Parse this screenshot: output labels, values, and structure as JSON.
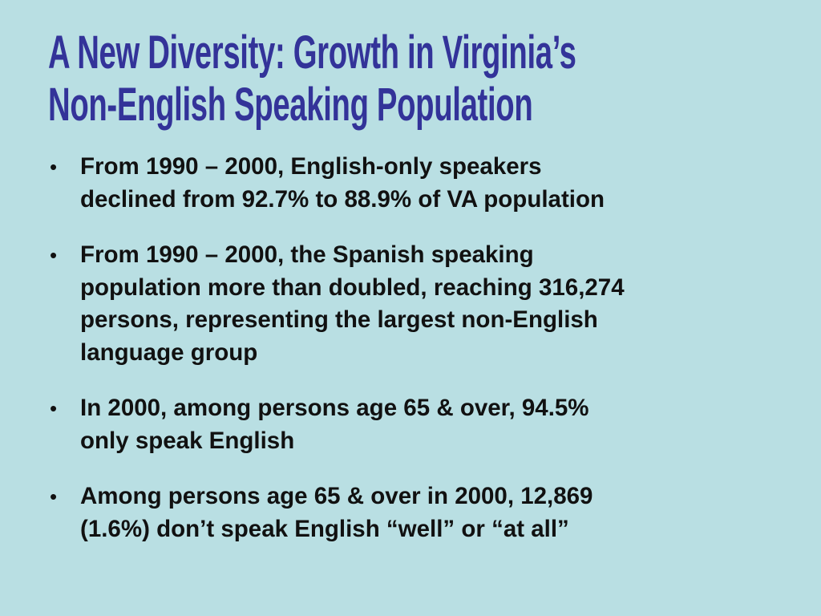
{
  "header": {
    "title_lines": [
      "A New Diversity: Growth in Virginia’s",
      "Non-English Speaking Population"
    ]
  },
  "bullets": [
    {
      "lines": [
        "From 1990 – 2000, English-only speakers",
        "declined from 92.7% to 88.9% of VA population"
      ]
    },
    {
      "lines": [
        "From 1990 – 2000, the Spanish speaking",
        "population more than doubled, reaching 316,274",
        "persons, representing the largest non-English",
        "language group"
      ]
    },
    {
      "lines": [
        "In 2000, among persons age 65 & over, 94.5%",
        "only speak English"
      ]
    },
    {
      "lines": [
        "Among persons age 65 & over in 2000, 12,869",
        "(1.6%) don’t speak English “well” or “at all”"
      ]
    }
  ]
}
